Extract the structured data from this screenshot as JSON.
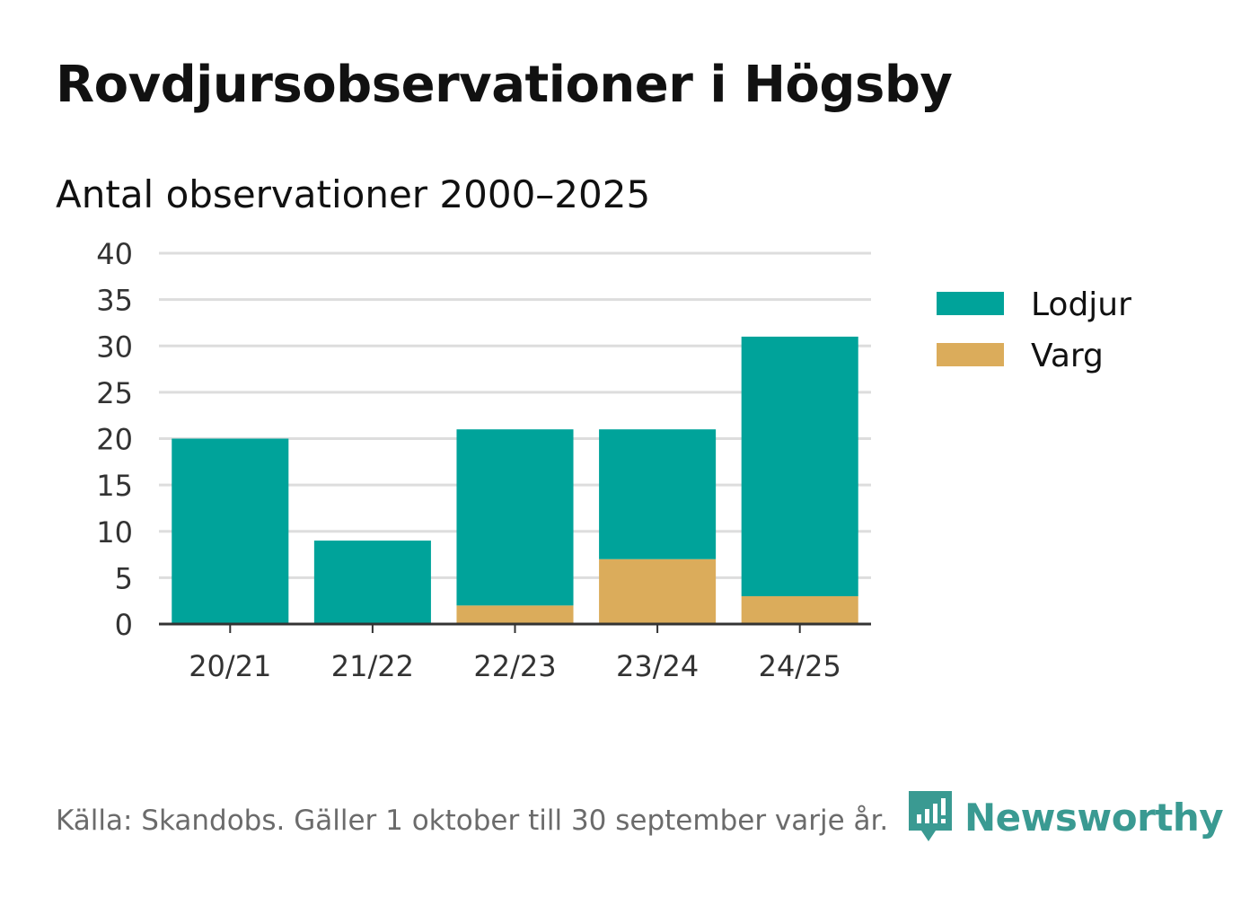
{
  "chart_data": {
    "type": "bar",
    "stacked": true,
    "title": "Rovdjursobservationer i Högsby",
    "subtitle": "Antal observationer 2000–2025",
    "categories": [
      "20/21",
      "21/22",
      "22/23",
      "23/24",
      "24/25"
    ],
    "series": [
      {
        "name": "Varg",
        "color": "#dbac5b",
        "values": [
          0,
          0,
          2,
          7,
          3
        ]
      },
      {
        "name": "Lodjur",
        "color": "#00a39a",
        "values": [
          20,
          9,
          19,
          14,
          28
        ]
      }
    ],
    "legend_order": [
      "Lodjur",
      "Varg"
    ],
    "ylim": [
      0,
      40
    ],
    "yticks": [
      0,
      5,
      10,
      15,
      20,
      25,
      30,
      35,
      40
    ],
    "grid": true,
    "legend_position": "right"
  },
  "footer": {
    "source": "Källa: Skandobs. Gäller 1 oktober till 30 september varje år.",
    "brand": "Newsworthy"
  },
  "colors": {
    "brand": "#3a9a92",
    "grid": "#dddddd",
    "axis": "#333333"
  }
}
